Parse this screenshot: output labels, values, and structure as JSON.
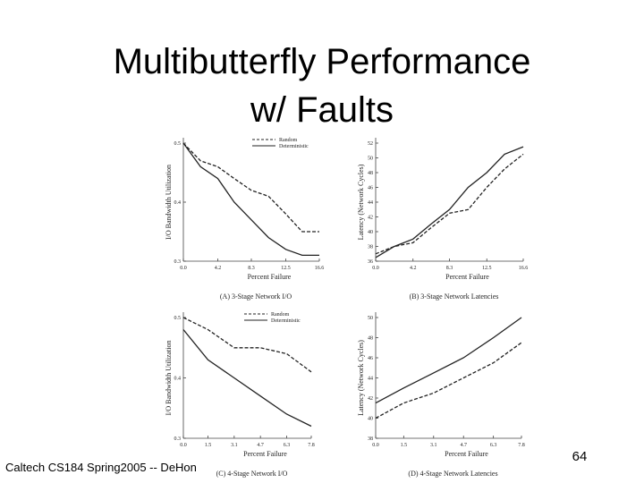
{
  "title": [
    "Multibutterfly Performance",
    "w/ Faults"
  ],
  "footer": "Caltech CS184 Spring2005 -- DeHon",
  "page_number": "64",
  "chart_data": [
    {
      "type": "line",
      "caption": "(A) 3-Stage Network I/O",
      "xlabel": "Percent Failure",
      "ylabel": "I/O Bandwidth Utilization",
      "x": [
        0,
        2.1,
        4.2,
        6.2,
        8.3,
        10.4,
        12.5,
        14.5,
        16.6
      ],
      "xlim": [
        0,
        16.6
      ],
      "xticks": [
        {
          "value": 0,
          "label": "0.0"
        },
        4.2,
        8.3,
        12.5,
        16.6
      ],
      "ylim": [
        0.3,
        0.5
      ],
      "yticks": [
        0.3,
        0.4,
        0.5
      ],
      "legend": "top-right",
      "series": [
        {
          "name": "Random",
          "color": "#222",
          "line_style": "dashed",
          "values": [
            0.5,
            0.47,
            0.46,
            0.44,
            0.42,
            0.41,
            0.38,
            0.35,
            0.35
          ]
        },
        {
          "name": "Deterministic",
          "color": "#222",
          "line_style": "solid",
          "values": [
            0.5,
            0.46,
            0.44,
            0.4,
            0.37,
            0.34,
            0.32,
            0.31,
            0.31
          ]
        }
      ]
    },
    {
      "type": "line",
      "caption": "(B) 3-Stage Network Latencies",
      "xlabel": "Percent Failure",
      "ylabel": "Latency (Network Cycles)",
      "x": [
        0,
        2.1,
        4.2,
        6.2,
        8.3,
        10.4,
        12.5,
        14.5,
        16.6
      ],
      "xlim": [
        0,
        16.6
      ],
      "xticks": [
        {
          "value": 0,
          "label": "0.0"
        },
        4.2,
        8.3,
        12.5,
        16.6
      ],
      "ylim": [
        36,
        52
      ],
      "yticks": [
        36,
        38,
        40,
        42,
        44,
        46,
        48,
        50,
        52
      ],
      "series": [
        {
          "color": "#222",
          "line_style": "dashed",
          "values": [
            37,
            38,
            38.5,
            40.5,
            42.5,
            43,
            46,
            48.5,
            50.5
          ]
        },
        {
          "color": "#222",
          "line_style": "solid",
          "values": [
            36.5,
            38,
            39,
            41,
            43,
            46,
            48,
            50.5,
            51.5
          ]
        }
      ]
    },
    {
      "type": "line",
      "caption": "(C) 4-Stage Network I/O",
      "xlabel": "Percent Failure",
      "ylabel": "I/O Bandwidth Utilization",
      "x": [
        0,
        1.5,
        3.1,
        4.7,
        6.3,
        7.8
      ],
      "xlim": [
        0,
        7.8
      ],
      "xticks": [
        {
          "value": 0,
          "label": "0.0"
        },
        1.5,
        3.1,
        4.7,
        6.3,
        7.8
      ],
      "ylim": [
        0.3,
        0.5
      ],
      "yticks": [
        0.3,
        0.4,
        0.5
      ],
      "legend": "top-right",
      "series": [
        {
          "name": "Random",
          "color": "#222",
          "line_style": "dashed",
          "values": [
            0.5,
            0.48,
            0.45,
            0.45,
            0.44,
            0.41
          ]
        },
        {
          "name": "Deterministic",
          "color": "#222",
          "line_style": "solid",
          "values": [
            0.48,
            0.43,
            0.4,
            0.37,
            0.34,
            0.32
          ]
        }
      ]
    },
    {
      "type": "line",
      "caption": "(D) 4-Stage Network Latencies",
      "xlabel": "Percent Failure",
      "ylabel": "Latency (Network Cycles)",
      "x": [
        0,
        1.5,
        3.1,
        4.7,
        6.3,
        7.8
      ],
      "xlim": [
        0,
        7.8
      ],
      "xticks": [
        {
          "value": 0,
          "label": "0.0"
        },
        1.5,
        3.1,
        4.7,
        6.3,
        7.8
      ],
      "ylim": [
        38,
        50
      ],
      "yticks": [
        38,
        40,
        42,
        44,
        46,
        48,
        50
      ],
      "series": [
        {
          "color": "#222",
          "line_style": "dashed",
          "values": [
            40,
            41.5,
            42.5,
            44,
            45.5,
            47.5
          ]
        },
        {
          "color": "#222",
          "line_style": "solid",
          "values": [
            41.5,
            43,
            44.5,
            46,
            48,
            50
          ]
        }
      ]
    }
  ]
}
